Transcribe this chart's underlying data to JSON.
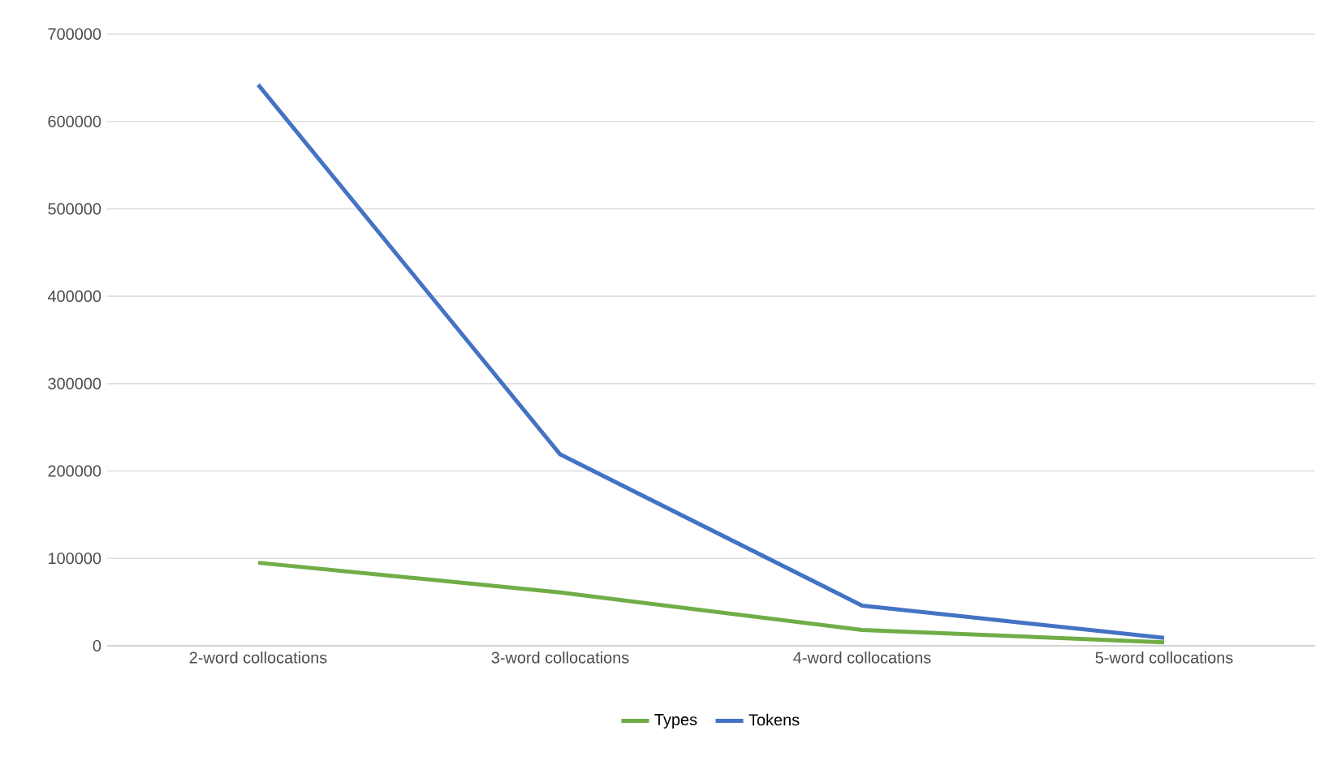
{
  "chart_data": {
    "type": "line",
    "categories": [
      "2-word collocations",
      "3-word collocations",
      "4-word collocations",
      "5-word collocations"
    ],
    "series": [
      {
        "name": "Types",
        "color": "#70ad47",
        "values": [
          95000,
          61000,
          18000,
          4000
        ]
      },
      {
        "name": "Tokens",
        "color": "#4472c4",
        "values": [
          642000,
          219000,
          46000,
          9000
        ]
      }
    ],
    "ylim": [
      0,
      700000
    ],
    "yticks": [
      0,
      100000,
      200000,
      300000,
      400000,
      500000,
      600000,
      700000
    ],
    "grid": "y",
    "legend": "bottom",
    "marker": "none",
    "line_style": "solid"
  }
}
